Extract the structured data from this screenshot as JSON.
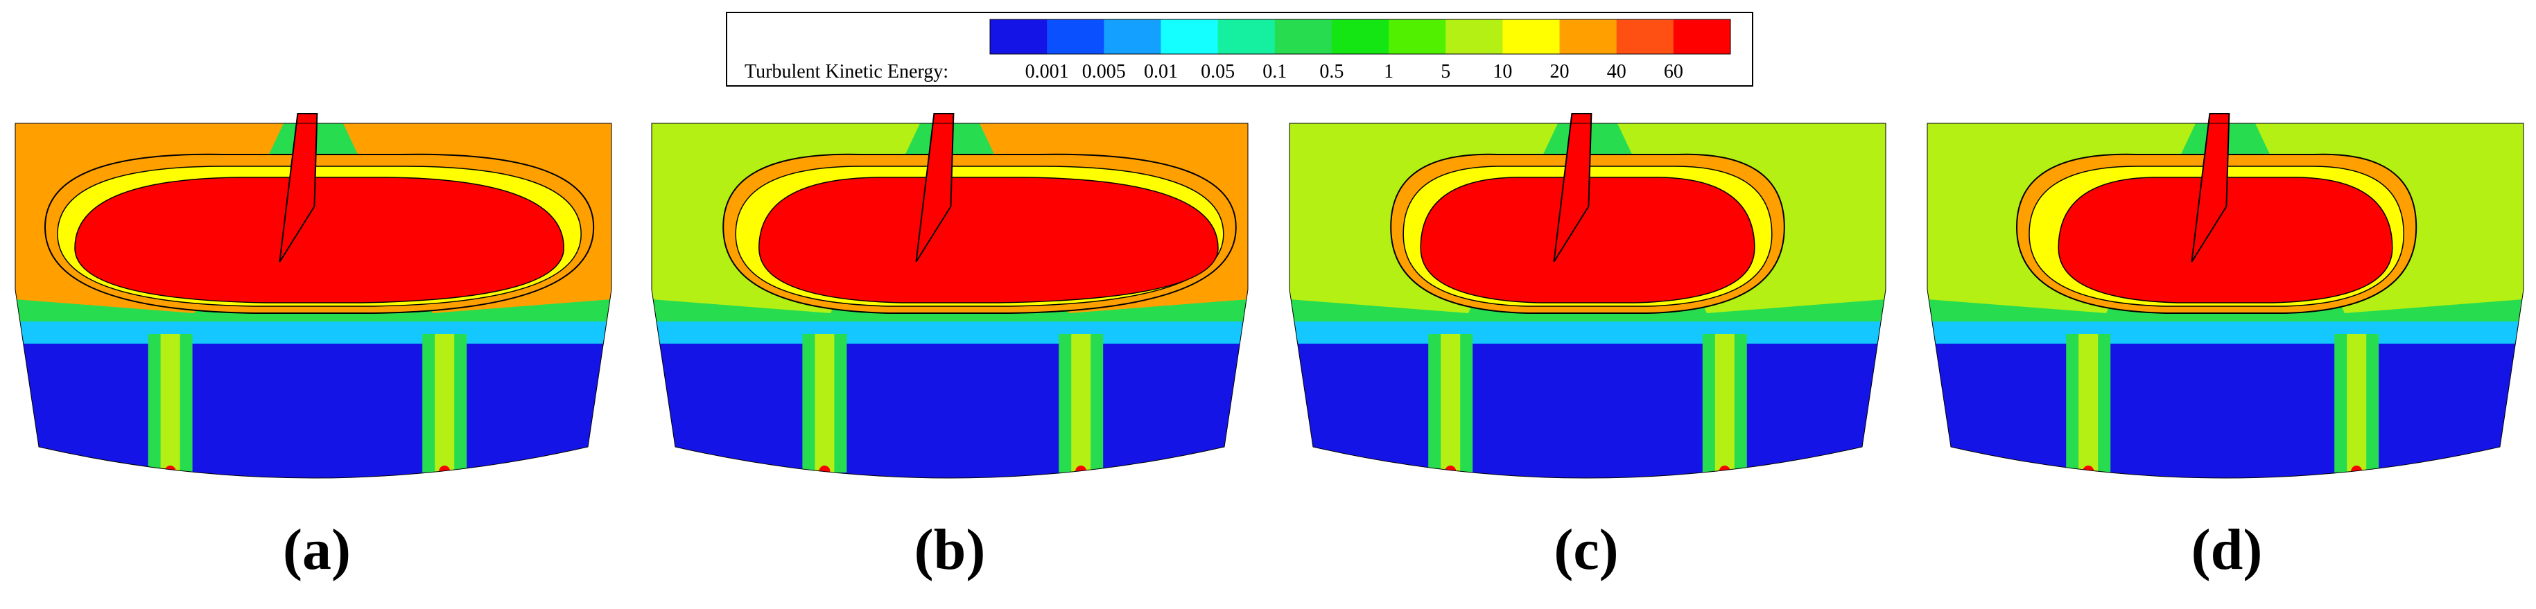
{
  "legend": {
    "title": "Turbulent Kinetic Energy:",
    "labels": [
      "0.001",
      "0.005",
      "0.01",
      "0.05",
      "0.1",
      "0.5",
      "1",
      "5",
      "10",
      "20",
      "40",
      "60"
    ],
    "colors": [
      "#1414e6",
      "#0a50ff",
      "#14a0ff",
      "#14ffff",
      "#14f0a0",
      "#28dc50",
      "#14e614",
      "#50f000",
      "#b4f014",
      "#ffff00",
      "#ffa000",
      "#ff5014",
      "#ff0000"
    ]
  },
  "panels": [
    {
      "label": "(a)"
    },
    {
      "label": "(b)"
    },
    {
      "label": "(c)"
    },
    {
      "label": "(d)"
    }
  ],
  "colors": {
    "deep_blue": "#1414e6",
    "cyan": "#14c8ff",
    "green": "#28dc50",
    "yellow_green": "#b4f014",
    "yellow": "#ffff00",
    "orange": "#ffa000",
    "red": "#ff0000"
  }
}
